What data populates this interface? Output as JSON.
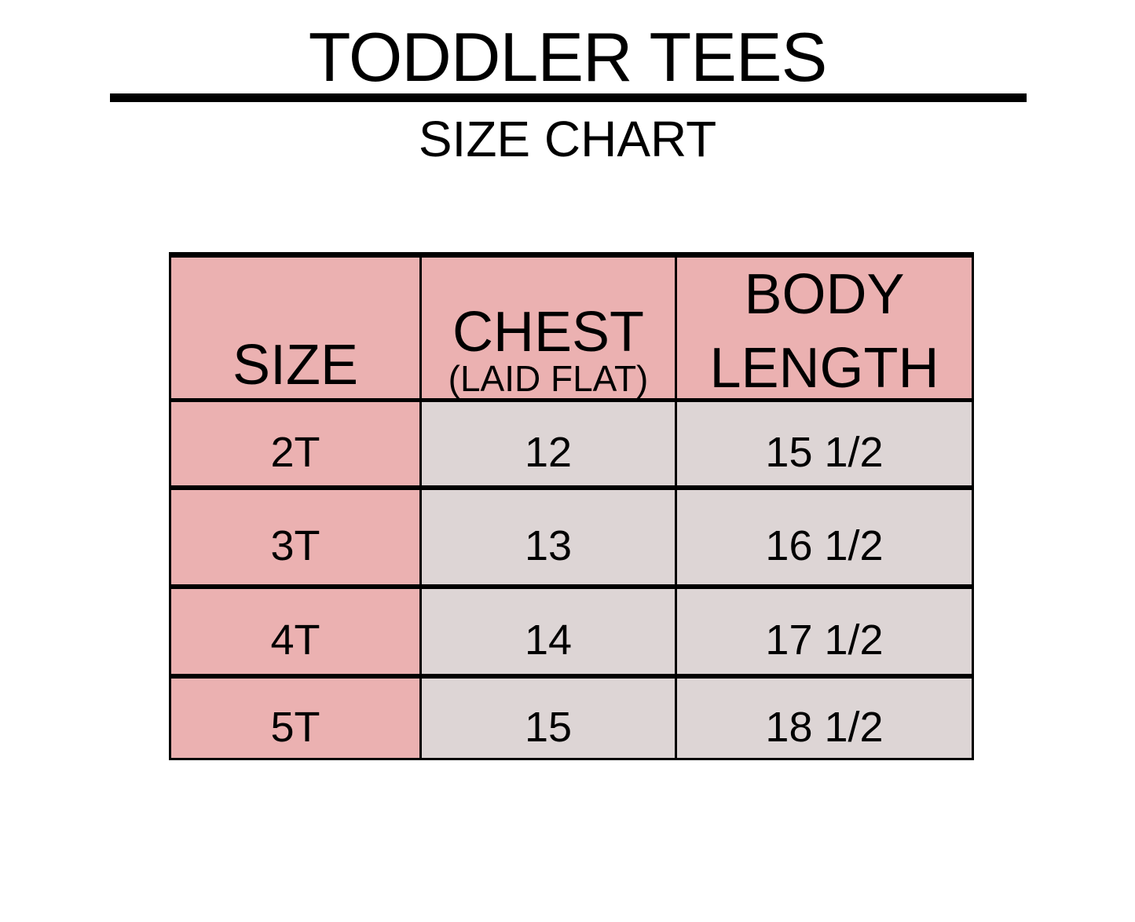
{
  "title": "TODDLER TEES",
  "subtitle": "SIZE CHART",
  "colors": {
    "header": "#ebb1b1",
    "size_column": "#ebb1b1",
    "body_cells": "#ddd5d5"
  },
  "table": {
    "headers": [
      {
        "main": "SIZE",
        "sub": ""
      },
      {
        "main": "CHEST",
        "sub": "(LAID FLAT)"
      },
      {
        "main": "BODY LENGTH",
        "sub": ""
      }
    ],
    "rows": [
      {
        "size": "2T",
        "chest": "12",
        "length": "15 1/2"
      },
      {
        "size": "3T",
        "chest": "13",
        "length": "16 1/2"
      },
      {
        "size": "4T",
        "chest": "14",
        "length": "17 1/2"
      },
      {
        "size": "5T",
        "chest": "15",
        "length": "18 1/2"
      }
    ]
  }
}
